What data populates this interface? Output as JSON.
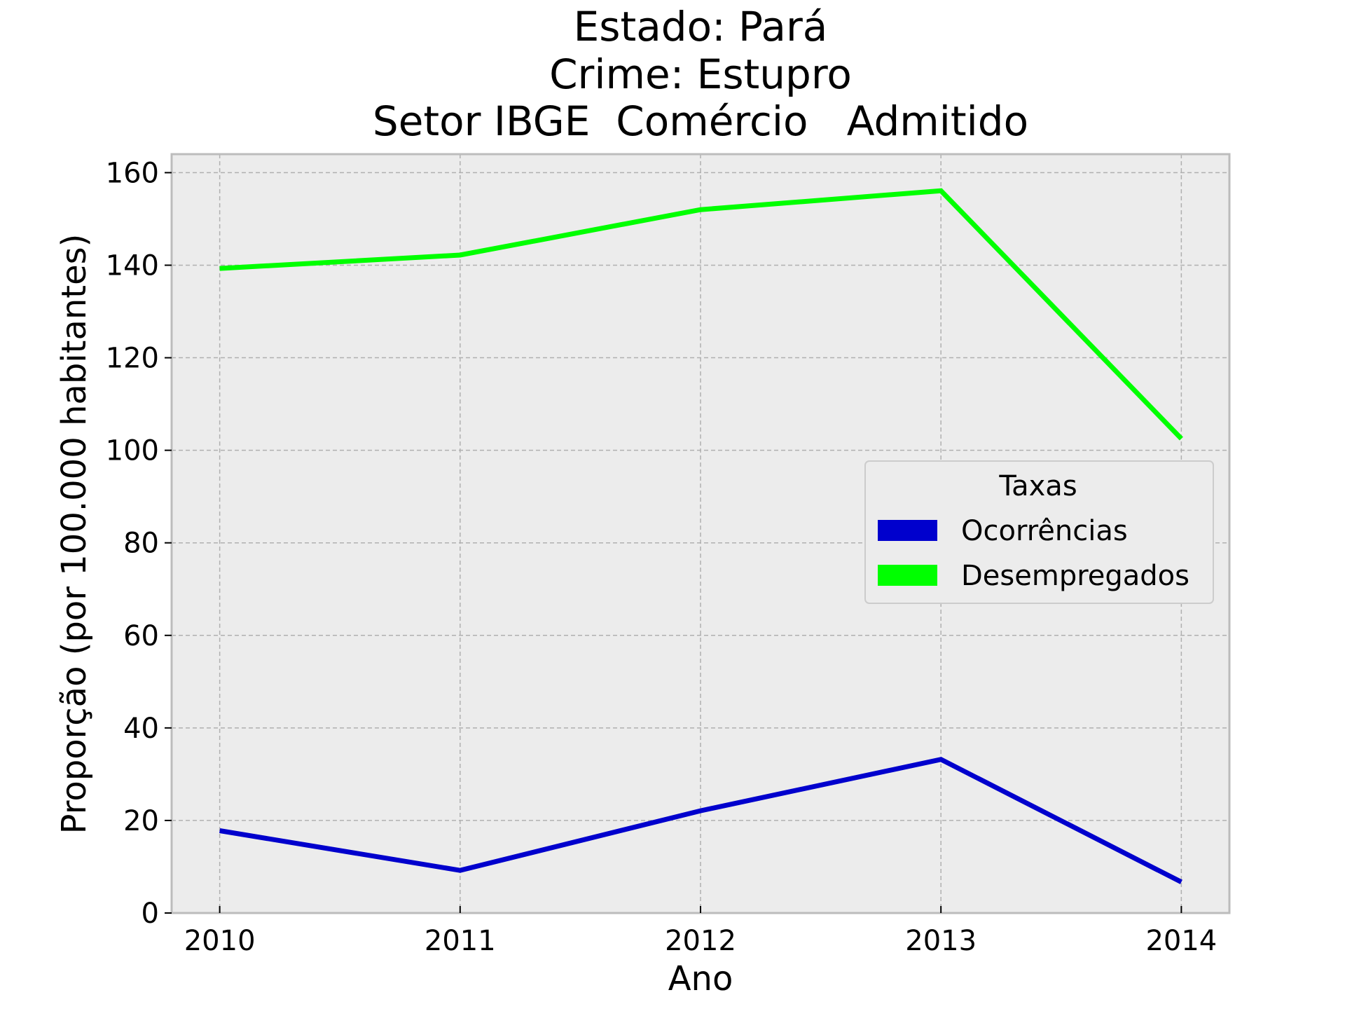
{
  "chart_data": {
    "type": "line",
    "title": [
      "Estado: Pará",
      "Crime: Estupro",
      "Setor IBGE  Comércio   Admitido"
    ],
    "xlabel": "Ano",
    "ylabel": "Proporção (por 100.000 habitantes)",
    "x": [
      2010,
      2011,
      2012,
      2013,
      2014
    ],
    "xticks": [
      "2010",
      "2011",
      "2012",
      "2013",
      "2014"
    ],
    "yticks": [
      "0",
      "20",
      "40",
      "60",
      "80",
      "100",
      "120",
      "140",
      "160"
    ],
    "ytick_values": [
      0,
      20,
      40,
      60,
      80,
      100,
      120,
      140,
      160
    ],
    "xlim": [
      2009.8,
      2014.2
    ],
    "ylim": [
      0,
      164
    ],
    "grid": true,
    "legend": {
      "title": "Taxas",
      "placement": "center-right"
    },
    "series": [
      {
        "name": "Ocorrências",
        "color": "#0000cd",
        "values": [
          17.8,
          9.2,
          22.1,
          33.2,
          6.7
        ]
      },
      {
        "name": "Desempregados",
        "color": "#00ff00",
        "values": [
          139.3,
          142.2,
          152.0,
          156.1,
          102.5
        ]
      }
    ],
    "colors": {
      "plot_background": "#ececec",
      "frame": "#bcbcbc"
    }
  }
}
